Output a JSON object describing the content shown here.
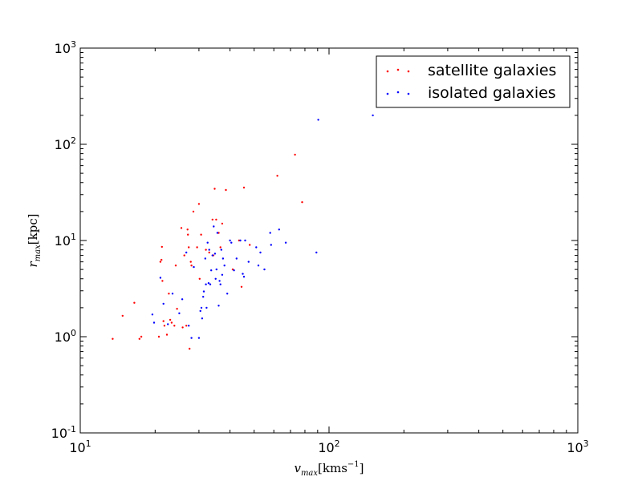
{
  "chart_data": {
    "type": "scatter",
    "xscale": "log",
    "yscale": "log",
    "xlim": [
      10,
      1000
    ],
    "ylim": [
      0.1,
      1000
    ],
    "x_ticks": [
      {
        "value": 10,
        "base": "10",
        "exp": "1"
      },
      {
        "value": 100,
        "base": "10",
        "exp": "2"
      },
      {
        "value": 1000,
        "base": "10",
        "exp": "3"
      }
    ],
    "y_ticks": [
      {
        "value": 0.1,
        "base": "10",
        "exp": "-1"
      },
      {
        "value": 1,
        "base": "10",
        "exp": "0"
      },
      {
        "value": 10,
        "base": "10",
        "exp": "1"
      },
      {
        "value": 100,
        "base": "10",
        "exp": "2"
      },
      {
        "value": 1000,
        "base": "10",
        "exp": "3"
      }
    ],
    "xlabel": {
      "main": "v",
      "sub": "max",
      "unit": "[kms",
      "unit_exp": "−1",
      "unit_close": "]"
    },
    "ylabel": {
      "main": "r",
      "sub": "max",
      "unit": "[kpc]"
    },
    "legend_position": "upper-right",
    "grid": false,
    "series": [
      {
        "name": "satellite galaxies",
        "color": "#ff0000",
        "points": [
          [
            13.5,
            0.95
          ],
          [
            14.8,
            1.65
          ],
          [
            16.5,
            2.25
          ],
          [
            17.3,
            0.95
          ],
          [
            17.6,
            1.0
          ],
          [
            20.7,
            1.0
          ],
          [
            21.0,
            6.0
          ],
          [
            21.2,
            6.3
          ],
          [
            21.3,
            8.6
          ],
          [
            21.4,
            3.8
          ],
          [
            21.6,
            1.45
          ],
          [
            21.8,
            1.3
          ],
          [
            22.3,
            1.05
          ],
          [
            22.7,
            2.8
          ],
          [
            23.0,
            1.5
          ],
          [
            23.3,
            1.4
          ],
          [
            23.9,
            1.3
          ],
          [
            24.2,
            5.5
          ],
          [
            24.5,
            1.95
          ],
          [
            25.5,
            13.5
          ],
          [
            25.8,
            1.25
          ],
          [
            26.2,
            7.0
          ],
          [
            26.7,
            1.3
          ],
          [
            27.0,
            13.0
          ],
          [
            27.1,
            11.5
          ],
          [
            27.3,
            8.5
          ],
          [
            27.5,
            0.75
          ],
          [
            27.8,
            6.0
          ],
          [
            28.0,
            5.5
          ],
          [
            28.5,
            20.0
          ],
          [
            29.5,
            8.5
          ],
          [
            30.0,
            24.0
          ],
          [
            30.2,
            4.0
          ],
          [
            30.6,
            11.5
          ],
          [
            32.0,
            8.0
          ],
          [
            33.0,
            7.5
          ],
          [
            34.0,
            16.5
          ],
          [
            34.3,
            7.0
          ],
          [
            34.7,
            34.5
          ],
          [
            35.2,
            16.5
          ],
          [
            36.0,
            12.0
          ],
          [
            36.6,
            8.5
          ],
          [
            37.2,
            15.0
          ],
          [
            38.5,
            33.5
          ],
          [
            41.0,
            5.0
          ],
          [
            43.5,
            10.0
          ],
          [
            44.5,
            3.3
          ],
          [
            45.5,
            35.5
          ],
          [
            48.0,
            9.0
          ],
          [
            62.0,
            47.0
          ],
          [
            73.0,
            78.0
          ],
          [
            78.0,
            25.0
          ]
        ]
      },
      {
        "name": "isolated galaxies",
        "color": "#0000ff",
        "points": [
          [
            19.5,
            1.7
          ],
          [
            19.8,
            1.4
          ],
          [
            21.0,
            4.1
          ],
          [
            21.6,
            2.2
          ],
          [
            22.5,
            1.35
          ],
          [
            23.5,
            2.8
          ],
          [
            25.0,
            1.75
          ],
          [
            25.7,
            2.45
          ],
          [
            26.7,
            7.5
          ],
          [
            27.3,
            1.3
          ],
          [
            28.0,
            0.97
          ],
          [
            28.6,
            5.3
          ],
          [
            30.0,
            0.97
          ],
          [
            30.4,
            1.85
          ],
          [
            30.7,
            2.0
          ],
          [
            30.9,
            1.55
          ],
          [
            31.2,
            2.6
          ],
          [
            31.4,
            2.95
          ],
          [
            31.8,
            6.5
          ],
          [
            32.0,
            3.5
          ],
          [
            32.2,
            2.0
          ],
          [
            32.5,
            9.5
          ],
          [
            32.8,
            3.6
          ],
          [
            33.0,
            8.0
          ],
          [
            33.3,
            3.5
          ],
          [
            33.6,
            4.9
          ],
          [
            34.0,
            7.0
          ],
          [
            34.4,
            14.0
          ],
          [
            34.8,
            7.3
          ],
          [
            35.0,
            4.0
          ],
          [
            35.3,
            5.0
          ],
          [
            35.6,
            12.0
          ],
          [
            36.0,
            2.1
          ],
          [
            36.3,
            3.8
          ],
          [
            36.6,
            3.5
          ],
          [
            36.9,
            8.0
          ],
          [
            37.2,
            4.4
          ],
          [
            37.5,
            6.5
          ],
          [
            38.0,
            5.5
          ],
          [
            39.0,
            2.8
          ],
          [
            40.0,
            10.0
          ],
          [
            40.5,
            9.5
          ],
          [
            41.5,
            4.9
          ],
          [
            42.5,
            6.5
          ],
          [
            44.0,
            10.0
          ],
          [
            45.0,
            4.5
          ],
          [
            45.5,
            4.2
          ],
          [
            46.0,
            10.0
          ],
          [
            47.5,
            6.0
          ],
          [
            51.0,
            8.5
          ],
          [
            52.0,
            5.5
          ],
          [
            53.0,
            7.5
          ],
          [
            55.0,
            5.0
          ],
          [
            58.0,
            12.0
          ],
          [
            58.5,
            9.0
          ],
          [
            63.0,
            13.0
          ],
          [
            67.0,
            9.5
          ],
          [
            89.0,
            7.5
          ],
          [
            90.5,
            180.0
          ],
          [
            150.0,
            200.0
          ]
        ]
      }
    ]
  }
}
